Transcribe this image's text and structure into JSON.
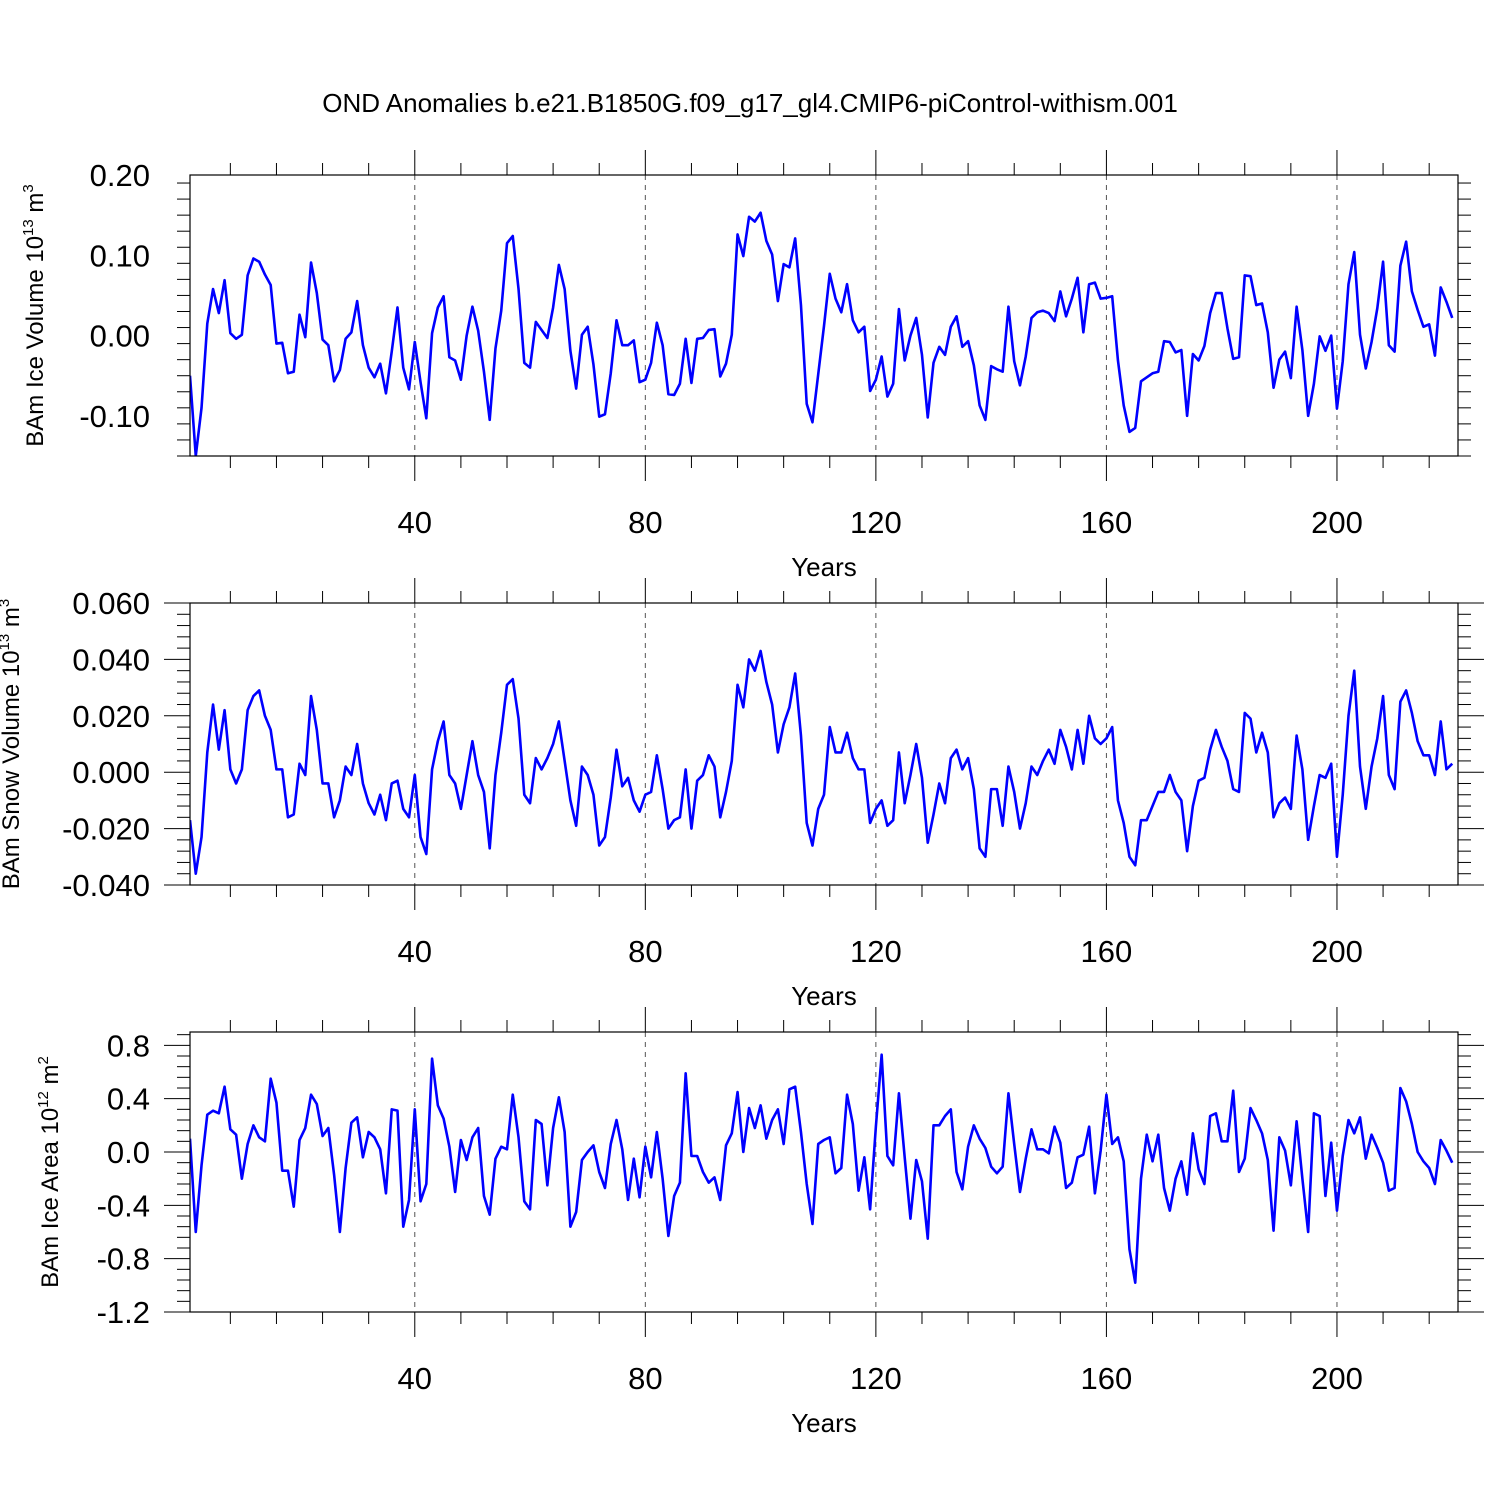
{
  "title": "OND Anomalies b.e21.B1850G.f09_g17_gl4.CMIP6-piControl-withism.001",
  "line_color": "#0000ff",
  "chart_data": [
    {
      "type": "line",
      "ylabel": "BAm Ice Volume 10",
      "ylabel_exp": "13",
      "ylabel_unit": " m",
      "ylabel_unit_exp": "3",
      "xlabel": "Years",
      "xlim": [
        1,
        221
      ],
      "ylim": [
        -0.15,
        0.2
      ],
      "yticks": [
        -0.1,
        0.0,
        0.1,
        0.2
      ],
      "ytick_labels": [
        "-0.10",
        "0.00",
        "0.10",
        "0.20"
      ],
      "xticks": [
        40,
        80,
        120,
        160,
        200
      ],
      "xtick_labels": [
        "40",
        "80",
        "120",
        "160",
        "200"
      ],
      "x_start": 1,
      "values": [
        -0.05,
        -0.15,
        -0.09,
        0.015,
        0.058,
        0.028,
        0.069,
        0.003,
        -0.004,
        0.001,
        0.075,
        0.096,
        0.092,
        0.076,
        0.063,
        -0.01,
        -0.009,
        -0.047,
        -0.045,
        0.026,
        -0.002,
        0.091,
        0.053,
        -0.005,
        -0.012,
        -0.057,
        -0.043,
        -0.004,
        0.004,
        0.043,
        -0.012,
        -0.04,
        -0.052,
        -0.035,
        -0.072,
        -0.02,
        0.035,
        -0.04,
        -0.067,
        -0.008,
        -0.058,
        -0.103,
        0.003,
        0.035,
        0.049,
        -0.027,
        -0.031,
        -0.055,
        0.0,
        0.036,
        0.006,
        -0.045,
        -0.105,
        -0.016,
        0.031,
        0.115,
        0.124,
        0.058,
        -0.034,
        -0.04,
        0.017,
        0.007,
        -0.003,
        0.035,
        0.088,
        0.058,
        -0.019,
        -0.066,
        0.001,
        0.011,
        -0.036,
        -0.101,
        -0.098,
        -0.047,
        0.019,
        -0.012,
        -0.012,
        -0.006,
        -0.058,
        -0.055,
        -0.034,
        0.016,
        -0.012,
        -0.073,
        -0.074,
        -0.06,
        -0.004,
        -0.059,
        -0.004,
        -0.003,
        0.007,
        0.008,
        -0.051,
        -0.035,
        0.001,
        0.126,
        0.099,
        0.148,
        0.142,
        0.153,
        0.118,
        0.101,
        0.043,
        0.089,
        0.085,
        0.121,
        0.038,
        -0.085,
        -0.108,
        -0.048,
        0.012,
        0.077,
        0.046,
        0.029,
        0.064,
        0.019,
        0.004,
        0.011,
        -0.069,
        -0.055,
        -0.026,
        -0.076,
        -0.06,
        0.033,
        -0.031,
        0.0,
        0.022,
        -0.024,
        -0.102,
        -0.034,
        -0.014,
        -0.024,
        0.011,
        0.024,
        -0.014,
        -0.007,
        -0.037,
        -0.087,
        -0.105,
        -0.038,
        -0.042,
        -0.045,
        0.036,
        -0.032,
        -0.062,
        -0.026,
        0.022,
        0.029,
        0.031,
        0.028,
        0.018,
        0.055,
        0.024,
        0.046,
        0.072,
        0.004,
        0.064,
        0.066,
        0.046,
        0.047,
        0.049,
        -0.031,
        -0.087,
        -0.12,
        -0.115,
        -0.057,
        -0.052,
        -0.047,
        -0.045,
        -0.007,
        -0.008,
        -0.021,
        -0.018,
        -0.1,
        -0.023,
        -0.031,
        -0.013,
        0.028,
        0.053,
        0.053,
        0.009,
        -0.029,
        -0.027,
        0.075,
        0.074,
        0.038,
        0.04,
        0.004,
        -0.065,
        -0.03,
        -0.02,
        -0.053,
        0.036,
        -0.018,
        -0.1,
        -0.06,
        -0.001,
        -0.019,
        0.0,
        -0.091,
        -0.032,
        0.064,
        0.104,
        0.001,
        -0.041,
        -0.008,
        0.034,
        0.092,
        -0.012,
        -0.02,
        0.087,
        0.117,
        0.055,
        0.032,
        0.011,
        0.014,
        -0.025,
        0.06,
        0.042,
        0.022
      ]
    },
    {
      "type": "line",
      "ylabel": "BAm Snow Volume 10",
      "ylabel_exp": "13",
      "ylabel_unit": " m",
      "ylabel_unit_exp": "3",
      "xlabel": "Years",
      "xlim": [
        1,
        221
      ],
      "ylim": [
        -0.04,
        0.06
      ],
      "yticks": [
        -0.04,
        -0.02,
        0.0,
        0.02,
        0.04,
        0.06
      ],
      "ytick_labels": [
        "-0.040",
        "-0.020",
        "0.000",
        "0.020",
        "0.040",
        "0.060"
      ],
      "xticks": [
        40,
        80,
        120,
        160,
        200
      ],
      "xtick_labels": [
        "40",
        "80",
        "120",
        "160",
        "200"
      ],
      "x_start": 1,
      "values": [
        -0.017,
        -0.036,
        -0.023,
        0.007,
        0.024,
        0.008,
        0.022,
        0.001,
        -0.004,
        0.001,
        0.022,
        0.027,
        0.029,
        0.02,
        0.015,
        0.001,
        0.001,
        -0.016,
        -0.015,
        0.003,
        -0.001,
        0.027,
        0.015,
        -0.004,
        -0.004,
        -0.016,
        -0.01,
        0.002,
        -0.001,
        0.01,
        -0.004,
        -0.011,
        -0.015,
        -0.008,
        -0.017,
        -0.004,
        -0.003,
        -0.013,
        -0.016,
        -0.001,
        -0.023,
        -0.029,
        0.001,
        0.011,
        0.018,
        -0.001,
        -0.004,
        -0.013,
        -0.001,
        0.011,
        -0.001,
        -0.007,
        -0.027,
        -0.001,
        0.014,
        0.031,
        0.033,
        0.019,
        -0.008,
        -0.011,
        0.005,
        0.001,
        0.005,
        0.01,
        0.018,
        0.004,
        -0.01,
        -0.019,
        0.002,
        -0.001,
        -0.008,
        -0.026,
        -0.023,
        -0.009,
        0.008,
        -0.005,
        -0.002,
        -0.01,
        -0.014,
        -0.008,
        -0.007,
        0.006,
        -0.006,
        -0.02,
        -0.017,
        -0.016,
        0.001,
        -0.02,
        -0.003,
        -0.001,
        0.006,
        0.002,
        -0.016,
        -0.007,
        0.004,
        0.031,
        0.023,
        0.04,
        0.036,
        0.043,
        0.032,
        0.024,
        0.007,
        0.017,
        0.023,
        0.035,
        0.013,
        -0.018,
        -0.026,
        -0.013,
        -0.008,
        0.016,
        0.007,
        0.007,
        0.014,
        0.005,
        0.001,
        0.001,
        -0.018,
        -0.013,
        -0.01,
        -0.019,
        -0.017,
        0.007,
        -0.011,
        -0.001,
        0.01,
        -0.002,
        -0.025,
        -0.015,
        -0.004,
        -0.011,
        0.005,
        0.008,
        0.001,
        0.005,
        -0.006,
        -0.027,
        -0.03,
        -0.006,
        -0.006,
        -0.019,
        0.002,
        -0.007,
        -0.02,
        -0.011,
        0.002,
        -0.001,
        0.004,
        0.008,
        0.003,
        0.015,
        0.009,
        0.001,
        0.015,
        0.003,
        0.02,
        0.012,
        0.01,
        0.012,
        0.016,
        -0.01,
        -0.018,
        -0.03,
        -0.033,
        -0.017,
        -0.017,
        -0.012,
        -0.007,
        -0.007,
        -0.001,
        -0.007,
        -0.01,
        -0.028,
        -0.012,
        -0.003,
        -0.002,
        0.008,
        0.015,
        0.009,
        0.004,
        -0.006,
        -0.007,
        0.021,
        0.019,
        0.007,
        0.014,
        0.007,
        -0.016,
        -0.011,
        -0.009,
        -0.013,
        0.013,
        0.001,
        -0.024,
        -0.012,
        -0.001,
        -0.002,
        0.003,
        -0.03,
        -0.008,
        0.02,
        0.036,
        0.002,
        -0.013,
        0.002,
        0.012,
        0.027,
        -0.001,
        -0.006,
        0.025,
        0.029,
        0.021,
        0.011,
        0.006,
        0.006,
        -0.001,
        0.018,
        0.001,
        0.003
      ]
    },
    {
      "type": "line",
      "ylabel": "BAm Ice Area 10",
      "ylabel_exp": "12",
      "ylabel_unit": " m",
      "ylabel_unit_exp": "2",
      "xlabel": "Years",
      "xlim": [
        1,
        221
      ],
      "ylim": [
        -1.2,
        0.9
      ],
      "yticks": [
        -1.2,
        -0.8,
        -0.4,
        0.0,
        0.4,
        0.8
      ],
      "ytick_labels": [
        "-1.2",
        "-0.8",
        "-0.4",
        "0.0",
        "0.4",
        "0.8"
      ],
      "xticks": [
        40,
        80,
        120,
        160,
        200
      ],
      "xtick_labels": [
        "40",
        "80",
        "120",
        "160",
        "200"
      ],
      "x_start": 1,
      "values": [
        0.1,
        -0.6,
        -0.1,
        0.28,
        0.31,
        0.29,
        0.49,
        0.17,
        0.13,
        -0.2,
        0.06,
        0.2,
        0.11,
        0.08,
        0.55,
        0.37,
        -0.14,
        -0.14,
        -0.41,
        0.09,
        0.18,
        0.43,
        0.36,
        0.12,
        0.18,
        -0.17,
        -0.6,
        -0.12,
        0.22,
        0.26,
        -0.04,
        0.15,
        0.11,
        0.02,
        -0.31,
        0.32,
        0.31,
        -0.56,
        -0.36,
        0.32,
        -0.37,
        -0.24,
        0.7,
        0.35,
        0.25,
        0.04,
        -0.3,
        0.09,
        -0.06,
        0.11,
        0.18,
        -0.33,
        -0.47,
        -0.05,
        0.04,
        0.02,
        0.43,
        0.11,
        -0.37,
        -0.43,
        0.24,
        0.21,
        -0.25,
        0.18,
        0.41,
        0.15,
        -0.56,
        -0.45,
        -0.06,
        0.0,
        0.05,
        -0.15,
        -0.27,
        0.06,
        0.24,
        0.02,
        -0.36,
        -0.05,
        -0.34,
        0.04,
        -0.19,
        0.15,
        -0.2,
        -0.63,
        -0.33,
        -0.23,
        0.59,
        -0.03,
        -0.03,
        -0.15,
        -0.23,
        -0.19,
        -0.36,
        0.05,
        0.14,
        0.45,
        0.0,
        0.33,
        0.18,
        0.35,
        0.1,
        0.24,
        0.32,
        0.06,
        0.47,
        0.49,
        0.15,
        -0.24,
        -0.54,
        0.06,
        0.09,
        0.11,
        -0.16,
        -0.12,
        0.43,
        0.21,
        -0.29,
        -0.04,
        -0.43,
        0.19,
        0.73,
        -0.03,
        -0.1,
        0.44,
        -0.04,
        -0.5,
        -0.06,
        -0.22,
        -0.65,
        0.2,
        0.2,
        0.27,
        0.32,
        -0.15,
        -0.28,
        0.04,
        0.2,
        0.1,
        0.03,
        -0.11,
        -0.16,
        -0.11,
        0.44,
        0.06,
        -0.3,
        -0.05,
        0.17,
        0.02,
        0.02,
        -0.01,
        0.19,
        0.07,
        -0.27,
        -0.23,
        -0.04,
        -0.02,
        0.19,
        -0.31,
        0.01,
        0.43,
        0.06,
        0.11,
        -0.07,
        -0.73,
        -0.98,
        -0.2,
        0.13,
        -0.07,
        0.13,
        -0.27,
        -0.44,
        -0.2,
        -0.07,
        -0.32,
        0.14,
        -0.13,
        -0.24,
        0.27,
        0.29,
        0.08,
        0.08,
        0.46,
        -0.15,
        -0.05,
        0.33,
        0.24,
        0.14,
        -0.06,
        -0.59,
        0.11,
        0.01,
        -0.25,
        0.23,
        -0.2,
        -0.6,
        0.29,
        0.27,
        -0.33,
        0.07,
        -0.44,
        -0.03,
        0.24,
        0.14,
        0.26,
        -0.05,
        0.13,
        0.03,
        -0.08,
        -0.29,
        -0.27,
        0.48,
        0.38,
        0.21,
        0.0,
        -0.07,
        -0.12,
        -0.24,
        0.09,
        0.01,
        -0.08
      ]
    }
  ]
}
